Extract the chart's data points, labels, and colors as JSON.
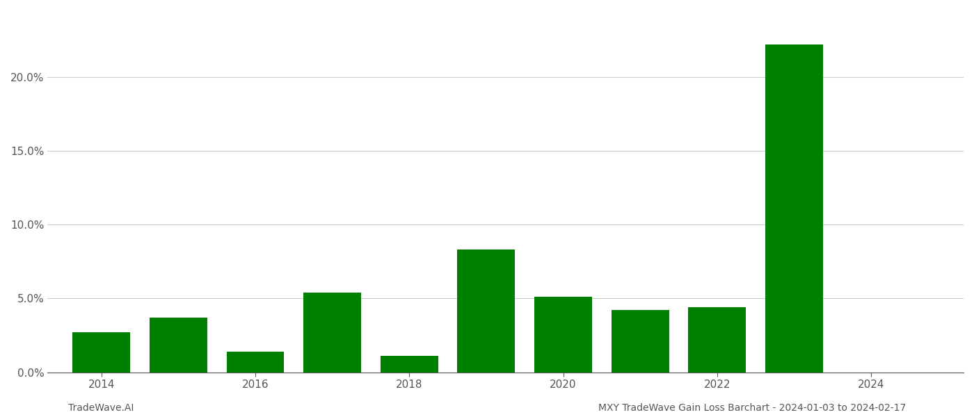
{
  "years": [
    2014,
    2015,
    2016,
    2017,
    2018,
    2019,
    2020,
    2021,
    2022,
    2023
  ],
  "values": [
    0.027,
    0.037,
    0.014,
    0.054,
    0.011,
    0.083,
    0.051,
    0.042,
    0.044,
    0.222
  ],
  "bar_color": "#008000",
  "background_color": "#ffffff",
  "grid_color": "#cccccc",
  "axis_color": "#555555",
  "ylabel_ticks": [
    0.0,
    0.05,
    0.1,
    0.15,
    0.2
  ],
  "ylim": [
    0,
    0.245
  ],
  "xlim": [
    2013.3,
    2025.2
  ],
  "xlabel_ticks": [
    2014,
    2016,
    2018,
    2020,
    2022,
    2024
  ],
  "footer_left": "TradeWave.AI",
  "footer_right": "MXY TradeWave Gain Loss Barchart - 2024-01-03 to 2024-02-17",
  "bar_width": 0.75,
  "tick_fontsize": 11,
  "footer_fontsize": 10
}
